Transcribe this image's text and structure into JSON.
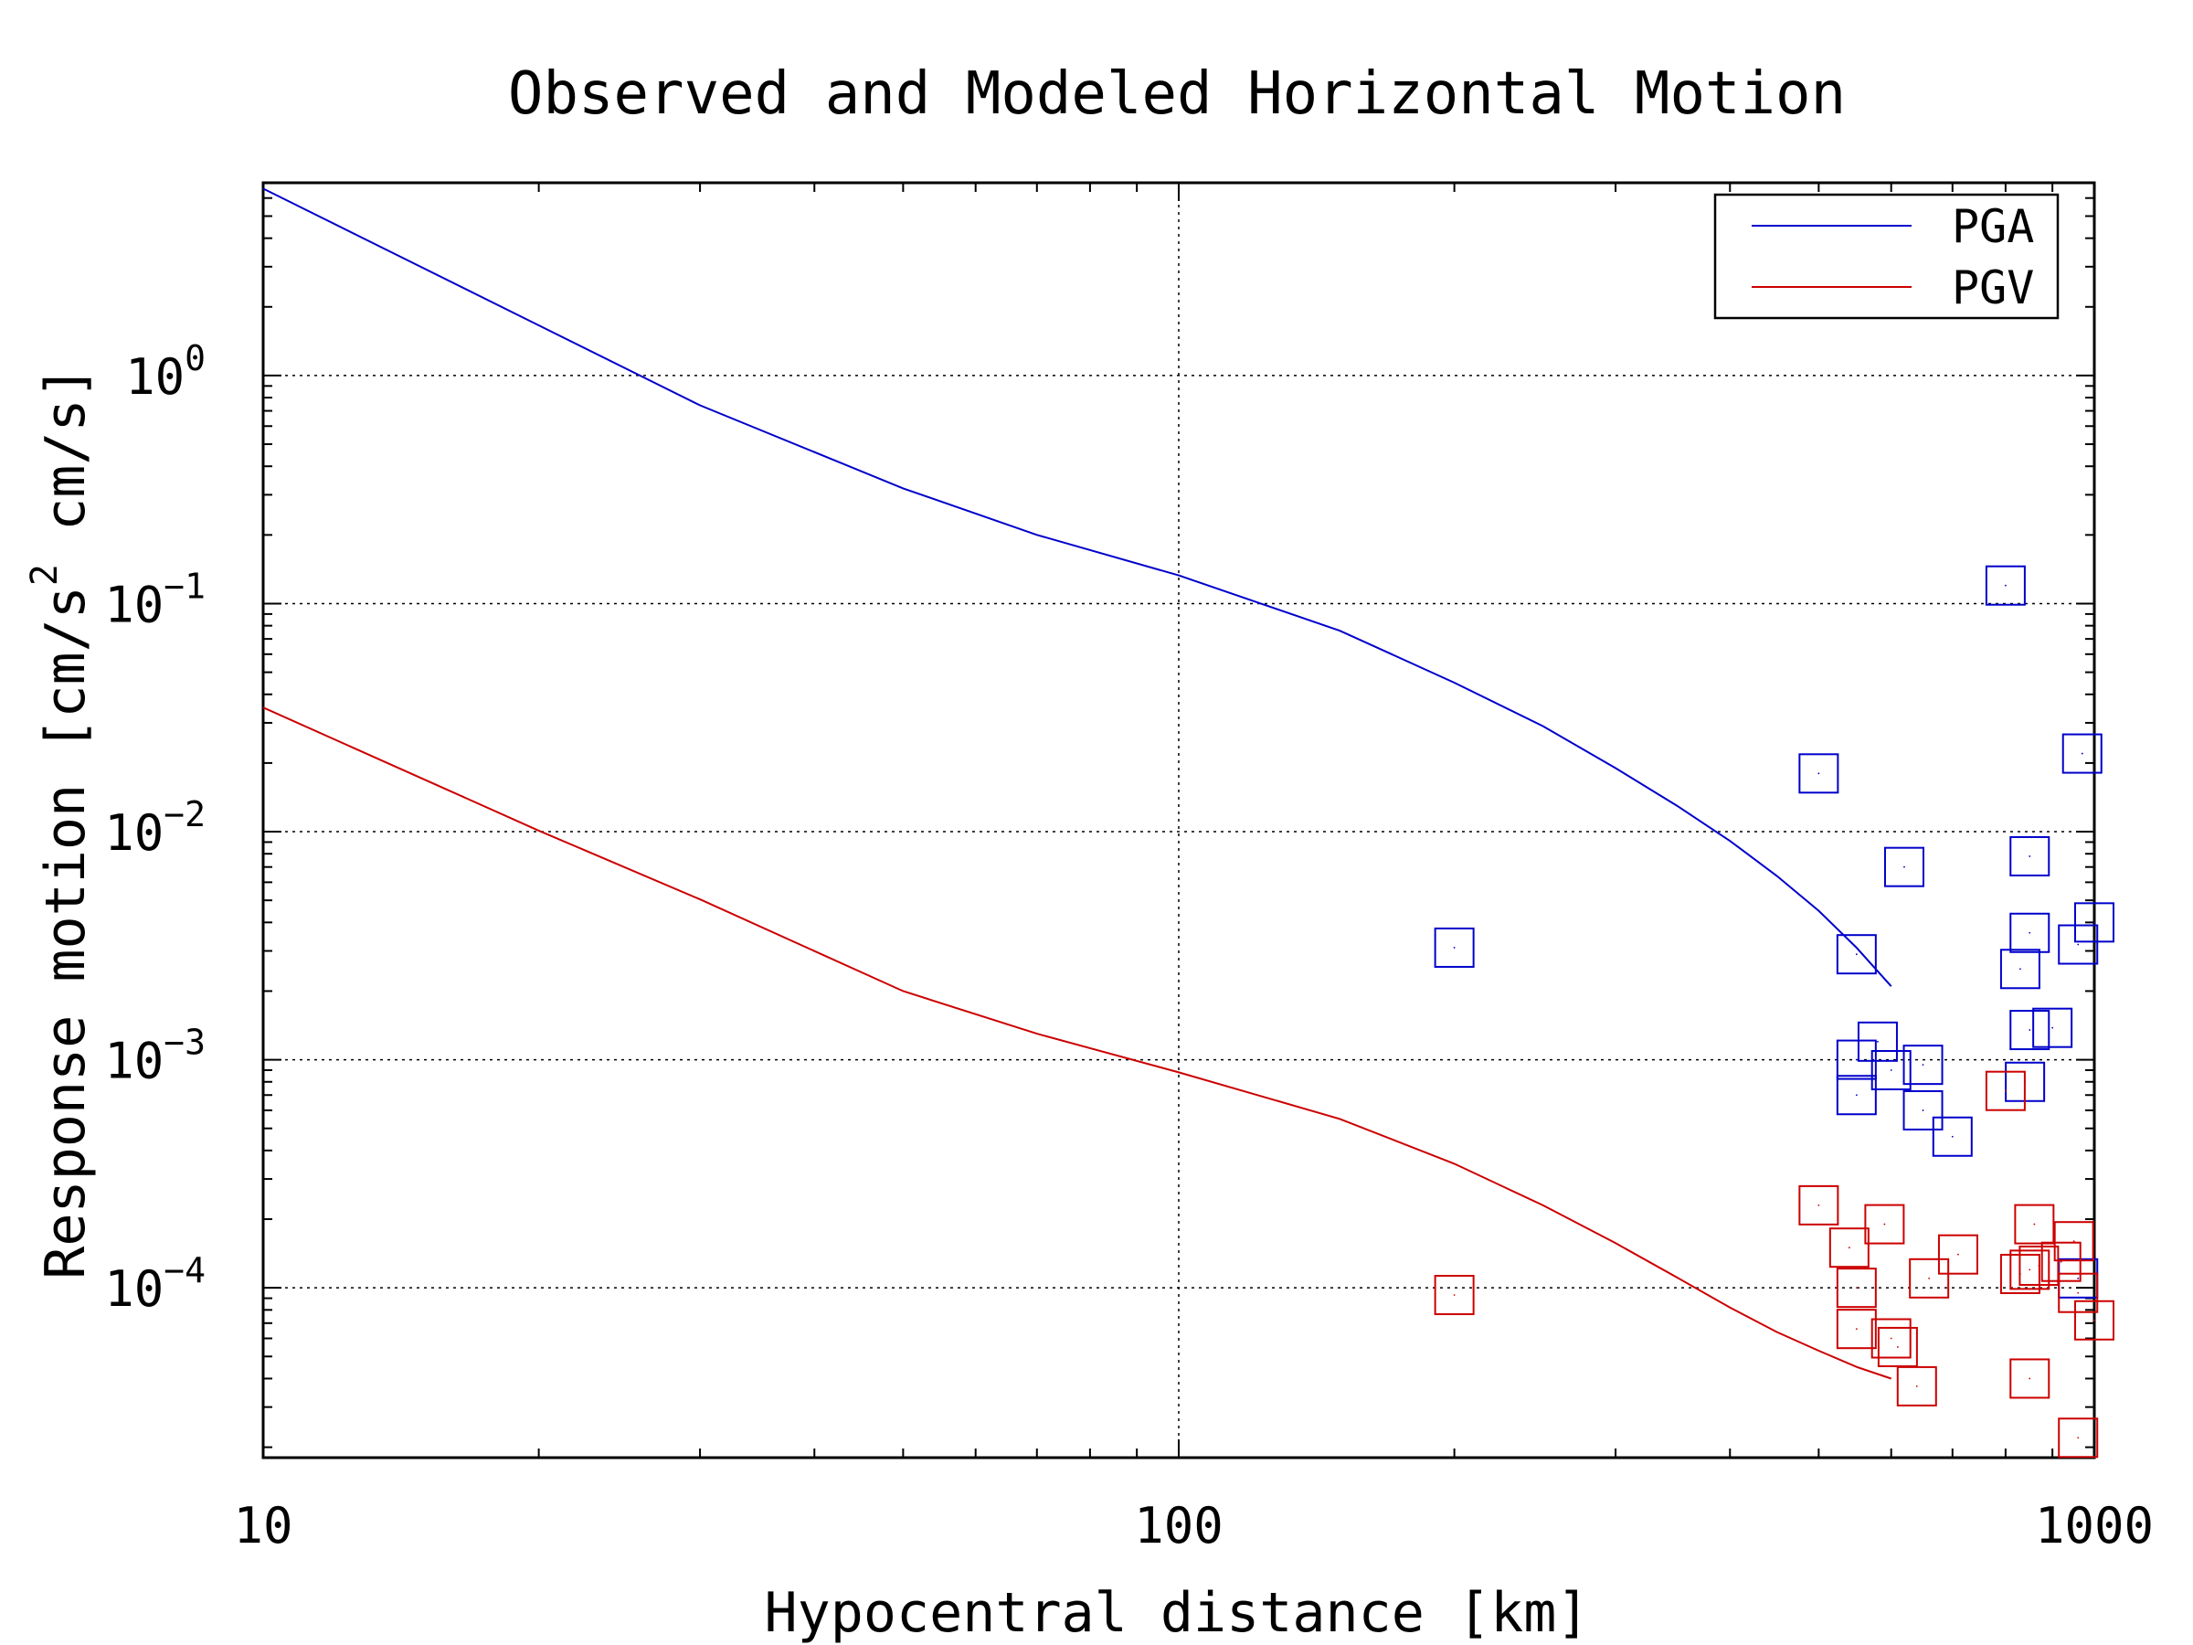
{
  "chart_data": {
    "type": "scatter",
    "title": "Observed and Modeled Horizontal Motion",
    "xlabel": "Hypocentral distance [km]",
    "ylabel": {
      "main": "Response motion  [cm/s",
      "sup": "2",
      "tail": "  cm/s]"
    },
    "xscale": "log",
    "yscale": "log",
    "xlim": [
      10,
      1000
    ],
    "ylim": [
      1.8e-05,
      7
    ],
    "grid": true,
    "legend_placement": "top-right",
    "x_ticks": [
      {
        "value": 10,
        "label": "10"
      },
      {
        "value": 100,
        "label": "100"
      },
      {
        "value": 1000,
        "label": "1000"
      }
    ],
    "y_ticks": [
      {
        "value": 1,
        "base": "10",
        "exp": "0"
      },
      {
        "value": 0.1,
        "base": "10",
        "exp": "−1"
      },
      {
        "value": 0.01,
        "base": "10",
        "exp": "−2"
      },
      {
        "value": 0.001,
        "base": "10",
        "exp": "−3"
      },
      {
        "value": 0.0001,
        "base": "10",
        "exp": "−4"
      }
    ],
    "series": [
      {
        "name": "PGA",
        "color": "#0000cc",
        "model_curve": [
          [
            10,
            6.6
          ],
          [
            20,
            1.66
          ],
          [
            30,
            0.74
          ],
          [
            50,
            0.32
          ],
          [
            70,
            0.2
          ],
          [
            100,
            0.133
          ],
          [
            150,
            0.076
          ],
          [
            200,
            0.045
          ],
          [
            250,
            0.029
          ],
          [
            300,
            0.019
          ],
          [
            350,
            0.013
          ],
          [
            400,
            0.0091
          ],
          [
            450,
            0.0064
          ],
          [
            500,
            0.0045
          ],
          [
            550,
            0.0031
          ],
          [
            600,
            0.0021
          ]
        ],
        "observed": [
          [
            200,
            0.0031
          ],
          [
            500,
            0.018
          ],
          [
            550,
            0.0029
          ],
          [
            620,
            0.007
          ],
          [
            800,
            0.12
          ],
          [
            970,
            0.022
          ],
          [
            850,
            0.0078
          ],
          [
            850,
            0.0036
          ],
          [
            830,
            0.0025
          ],
          [
            960,
            0.0032
          ],
          [
            1000,
            0.004
          ],
          [
            550,
            0.001
          ],
          [
            580,
            0.0012
          ],
          [
            600,
            0.0009
          ],
          [
            650,
            0.00095
          ],
          [
            550,
            0.0007
          ],
          [
            650,
            0.0006
          ],
          [
            700,
            0.00046
          ],
          [
            840,
            0.0008
          ],
          [
            850,
            0.00135
          ],
          [
            900,
            0.00138
          ],
          [
            960,
            0.00011
          ]
        ]
      },
      {
        "name": "PGV",
        "color": "#cc0000",
        "model_curve": [
          [
            10,
            0.035
          ],
          [
            20,
            0.0101
          ],
          [
            30,
            0.00505
          ],
          [
            50,
            0.002
          ],
          [
            70,
            0.0013
          ],
          [
            100,
            0.00088
          ],
          [
            150,
            0.00055
          ],
          [
            200,
            0.00035
          ],
          [
            250,
            0.00023
          ],
          [
            300,
            0.000157
          ],
          [
            350,
            0.000111
          ],
          [
            400,
            8.2e-05
          ],
          [
            450,
            6.4e-05
          ],
          [
            500,
            5.3e-05
          ],
          [
            550,
            4.5e-05
          ],
          [
            600,
            4e-05
          ]
        ],
        "observed": [
          [
            200,
            9.3e-05
          ],
          [
            500,
            0.00023
          ],
          [
            540,
            0.00015
          ],
          [
            590,
            0.00019
          ],
          [
            550,
            0.0001
          ],
          [
            550,
            6.6e-05
          ],
          [
            600,
            6e-05
          ],
          [
            610,
            5.5e-05
          ],
          [
            640,
            3.7e-05
          ],
          [
            660,
            0.00011
          ],
          [
            710,
            0.00014
          ],
          [
            800,
            0.00073
          ],
          [
            860,
            0.00019
          ],
          [
            830,
            0.000115
          ],
          [
            850,
            0.00012
          ],
          [
            920,
            0.00013
          ],
          [
            950,
            0.00016
          ],
          [
            870,
            0.000125
          ],
          [
            960,
            9.5e-05
          ],
          [
            1000,
            7.2e-05
          ],
          [
            850,
            4e-05
          ],
          [
            960,
            2.2e-05
          ]
        ]
      }
    ]
  }
}
